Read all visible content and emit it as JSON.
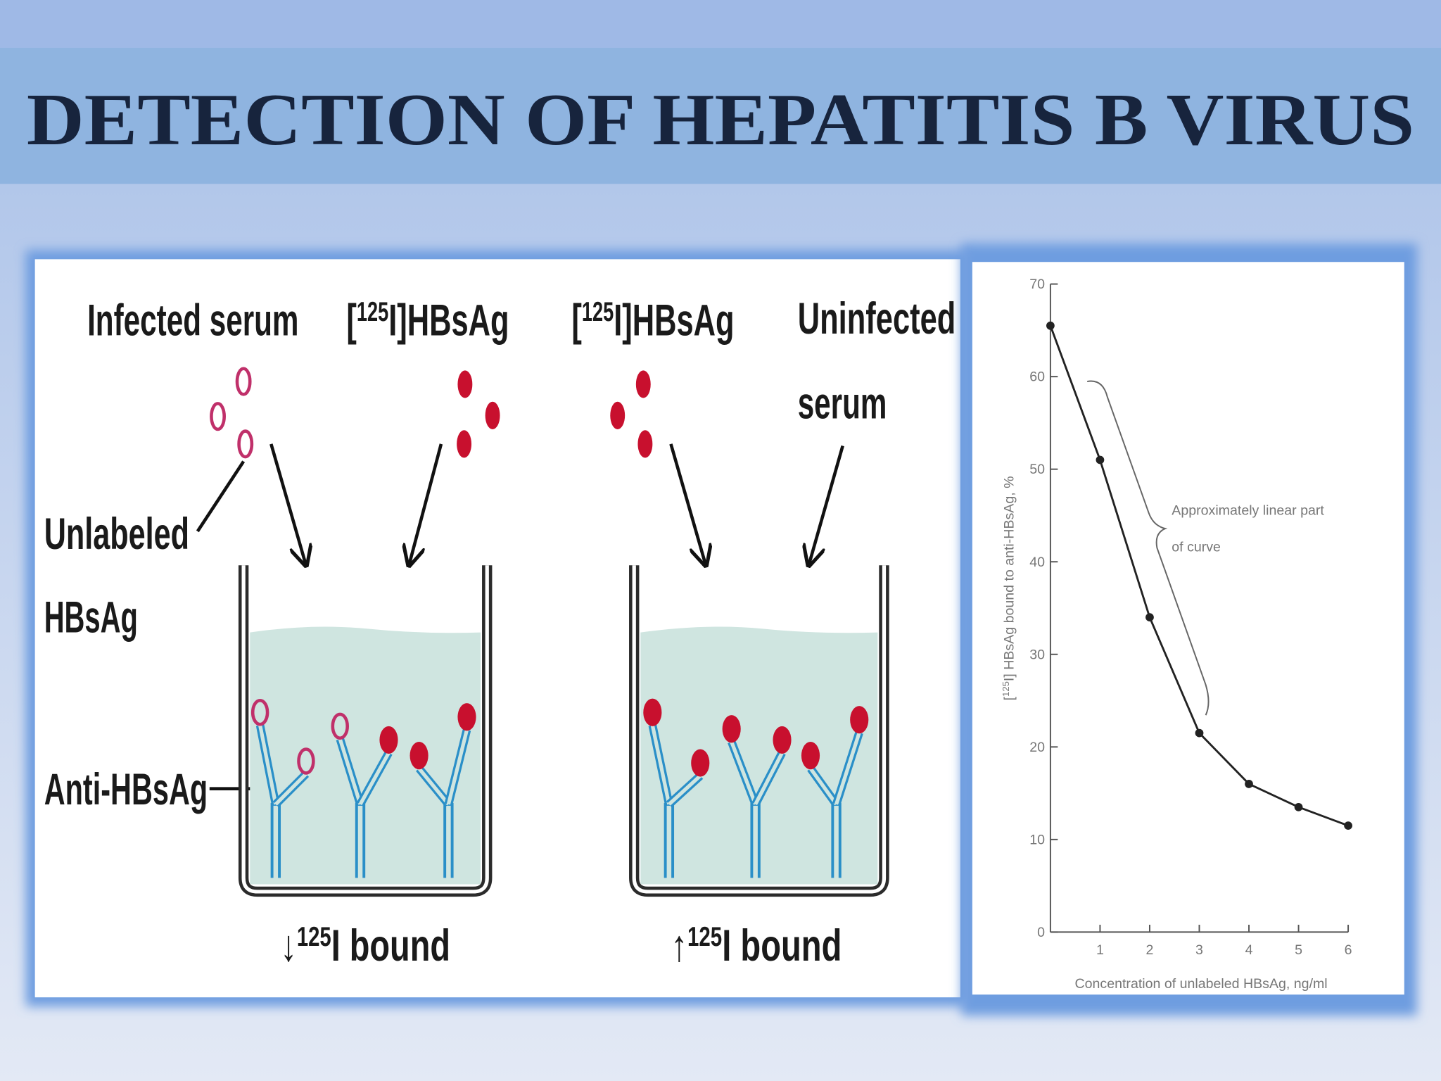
{
  "title": "DETECTION OF HEPATITIS B VIRUS",
  "diagram": {
    "infected_serum": "Infected serum",
    "labeled_antigen_left": [
      "[",
      "125",
      "I]HBsAg"
    ],
    "labeled_antigen_right": [
      "[",
      "125",
      "I]HBsAg"
    ],
    "uninfected_serum": [
      "Uninfected",
      "serum"
    ],
    "unlabeled_antigen": [
      "Unlabeled",
      "HBsAg"
    ],
    "antibody": "Anti-HBsAg",
    "result_left": [
      "↓",
      "125",
      "I bound"
    ],
    "result_right": [
      "↑",
      "125",
      "I bound"
    ]
  },
  "chart_data": {
    "type": "line",
    "x": [
      0,
      1,
      2,
      3,
      4,
      5,
      6
    ],
    "series": [
      {
        "color": "#222222",
        "values": [
          65.5,
          51,
          34,
          21.5,
          16,
          13.5,
          11.5
        ]
      }
    ],
    "xlim": [
      0,
      6
    ],
    "ylim": [
      0,
      70
    ],
    "xticks": [
      1,
      2,
      3,
      4,
      5,
      6
    ],
    "yticks": [
      0,
      10,
      20,
      30,
      40,
      50,
      60,
      70
    ],
    "xlabel": "Concentration of unlabeled HBsAg, ng/ml",
    "ylabel": [
      "[",
      "125",
      "I] HBsAg bound to anti-HBsAg, %"
    ],
    "annotation": [
      "Approximately linear part",
      "of curve"
    ]
  }
}
